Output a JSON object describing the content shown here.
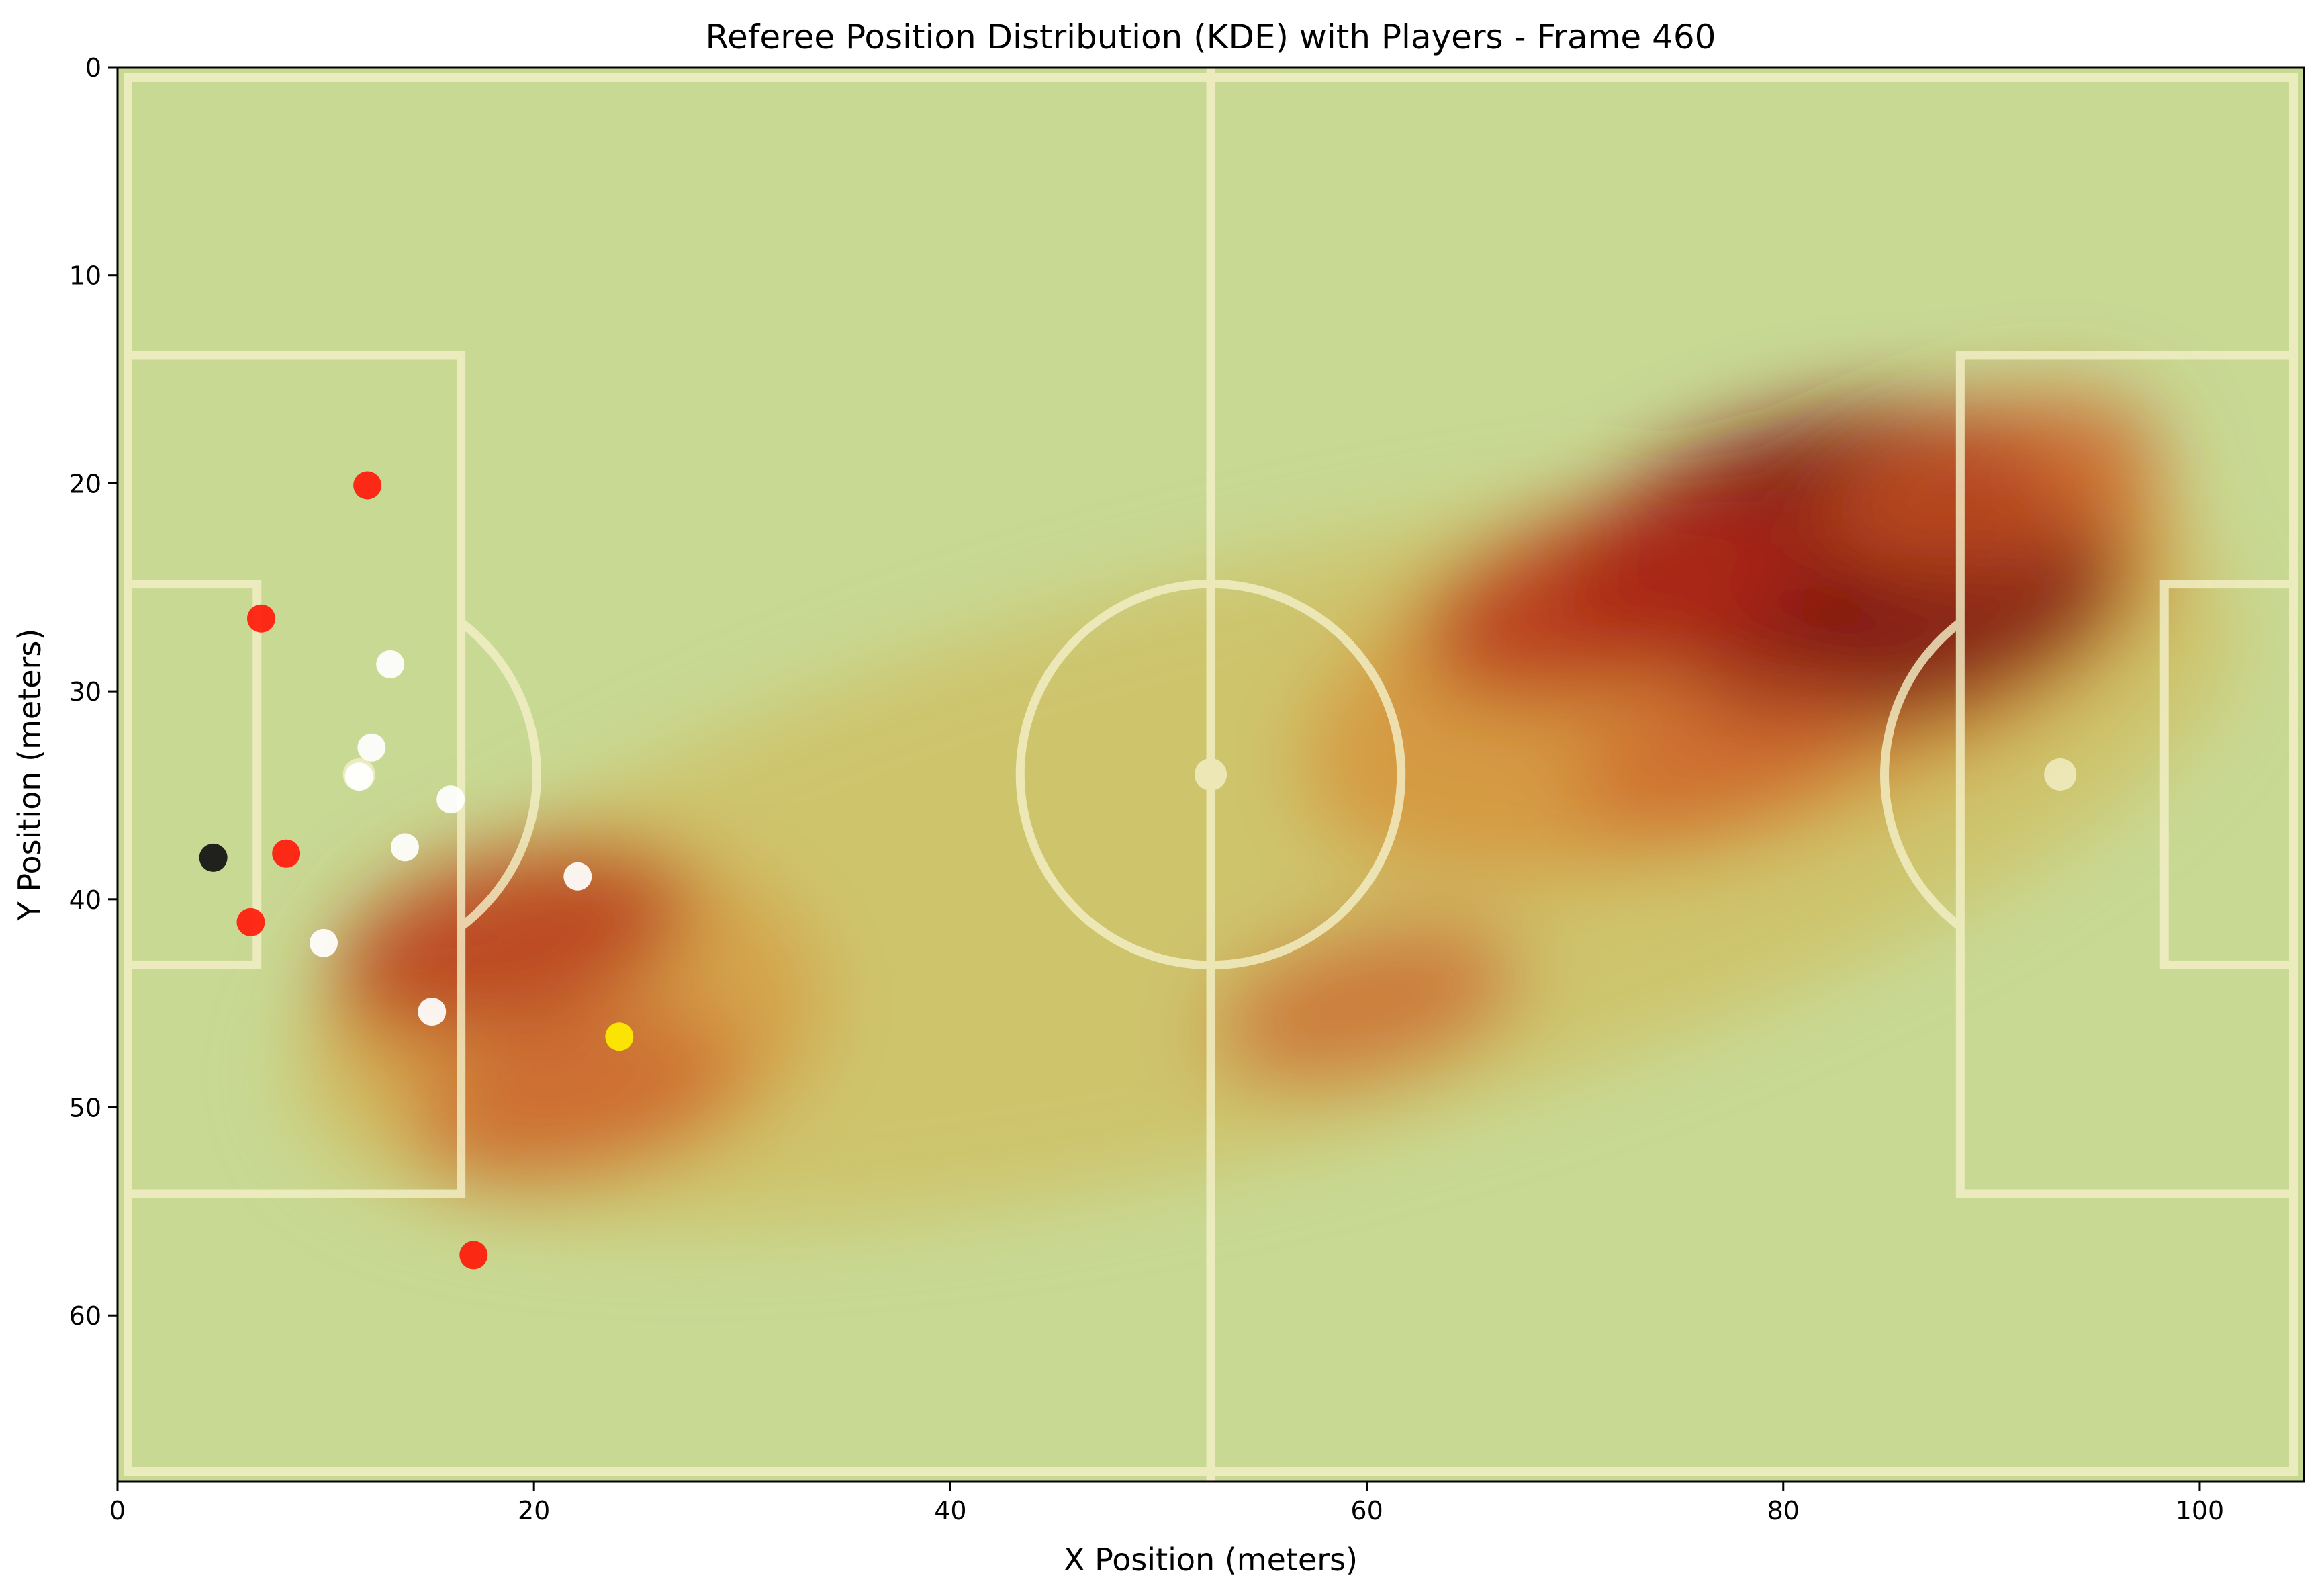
{
  "chart_data": {
    "type": "scatter",
    "title": "Referee Position Distribution (KDE) with Players - Frame 460",
    "xlabel": "X Position (meters)",
    "ylabel": "Y Position (meters)",
    "xlim": [
      0,
      105
    ],
    "ylim": [
      68,
      0
    ],
    "xticks": [
      0,
      20,
      40,
      60,
      80,
      100
    ],
    "yticks": [
      0,
      10,
      20,
      30,
      40,
      50,
      60
    ],
    "grid": false,
    "legend": "none",
    "colors": {
      "pitch": "#c8d994",
      "lines": "#f4f0c8",
      "team_red": "#ff1a0a",
      "team_white": "#ffffff",
      "goalkeeper": "#111111",
      "ball_yellow": "#ffee00"
    },
    "kde_hotspots": [
      {
        "x": 81,
        "y": 22.5,
        "intensity": 1.0
      },
      {
        "x": 86,
        "y": 26.5,
        "intensity": 0.85
      },
      {
        "x": 72,
        "y": 25.5,
        "intensity": 0.7
      },
      {
        "x": 90,
        "y": 20,
        "intensity": 0.55
      },
      {
        "x": 19,
        "y": 42,
        "intensity": 0.6
      },
      {
        "x": 22,
        "y": 49.5,
        "intensity": 0.5
      },
      {
        "x": 60,
        "y": 45,
        "intensity": 0.45
      },
      {
        "x": 77,
        "y": 33,
        "intensity": 0.4
      }
    ],
    "series": [
      {
        "team": "red",
        "points": [
          [
            12,
            20.1
          ],
          [
            6.9,
            26.5
          ],
          [
            8.1,
            37.8
          ],
          [
            6.4,
            41.1
          ],
          [
            17.1,
            57.1
          ]
        ]
      },
      {
        "team": "white",
        "points": [
          [
            13.1,
            28.7
          ],
          [
            12.2,
            32.7
          ],
          [
            11.6,
            34.1
          ],
          [
            16,
            35.2
          ],
          [
            13.8,
            37.5
          ],
          [
            22.1,
            38.9
          ],
          [
            9.9,
            42.1
          ],
          [
            15.1,
            45.4
          ]
        ]
      },
      {
        "team": "goalkeeper",
        "points": [
          [
            4.6,
            38
          ]
        ]
      },
      {
        "team": "yellow",
        "points": [
          [
            24.1,
            46.6
          ]
        ]
      }
    ],
    "pitch_markings": {
      "length": 105,
      "width": 68,
      "penalty_box": [
        16.5,
        40.3
      ],
      "goal_box": [
        5.5,
        18.3
      ],
      "center_circle_radius": 9.15,
      "penalty_spot_distance": 11
    }
  }
}
